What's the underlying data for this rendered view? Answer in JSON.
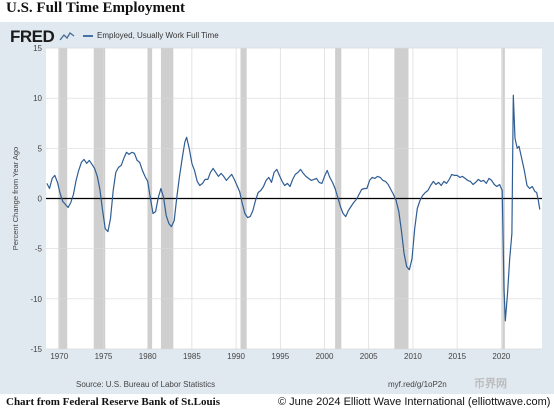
{
  "page": {
    "title": "U.S. Full Time Employment",
    "credit_left": "Chart from Federal Reserve Bank of St.Louis",
    "credit_right": "© June 2024 Elliott Wave International (elliottwave.com)"
  },
  "fred": {
    "logo_text": "FRED",
    "source": "Source: U.S. Bureau of Labor Statistics",
    "url": "myf.red/g/1oP2n",
    "watermark": "币界网"
  },
  "colors": {
    "line": "#2f5d93",
    "recession": "#cfcfcf",
    "plot_bg": "#ffffff",
    "frame_bg": "#e1e9f0",
    "grid": "#d9d9d9",
    "zero_line": "#000000"
  },
  "chart_data": {
    "type": "line",
    "title": "",
    "xlabel": "",
    "ylabel": "Percent Change from Year Ago",
    "xlim": [
      1968.5,
      2024.6
    ],
    "ylim": [
      -15,
      15
    ],
    "yticks": [
      15,
      10,
      5,
      0,
      -5,
      -10,
      -15
    ],
    "xticks": [
      1970,
      1975,
      1980,
      1985,
      1990,
      1995,
      2000,
      2005,
      2010,
      2015,
      2020
    ],
    "grid": true,
    "legend": "top-left",
    "series": [
      {
        "name": "Employed, Usually Work Full Time",
        "points": [
          [
            1968.6,
            1.5
          ],
          [
            1968.9,
            1.0
          ],
          [
            1969.2,
            2.0
          ],
          [
            1969.5,
            2.3
          ],
          [
            1969.8,
            1.6
          ],
          [
            1970.1,
            0.5
          ],
          [
            1970.4,
            -0.3
          ],
          [
            1970.7,
            -0.6
          ],
          [
            1971.0,
            -0.9
          ],
          [
            1971.3,
            -0.4
          ],
          [
            1971.6,
            0.4
          ],
          [
            1971.9,
            1.8
          ],
          [
            1972.2,
            2.8
          ],
          [
            1972.5,
            3.6
          ],
          [
            1972.8,
            3.9
          ],
          [
            1973.1,
            3.5
          ],
          [
            1973.4,
            3.8
          ],
          [
            1973.7,
            3.4
          ],
          [
            1974.0,
            3.0
          ],
          [
            1974.3,
            2.2
          ],
          [
            1974.6,
            0.9
          ],
          [
            1974.9,
            -1.2
          ],
          [
            1975.2,
            -3.0
          ],
          [
            1975.5,
            -3.3
          ],
          [
            1975.8,
            -2.0
          ],
          [
            1976.1,
            0.8
          ],
          [
            1976.4,
            2.6
          ],
          [
            1976.7,
            3.1
          ],
          [
            1977.0,
            3.3
          ],
          [
            1977.3,
            4.0
          ],
          [
            1977.6,
            4.6
          ],
          [
            1977.9,
            4.4
          ],
          [
            1978.2,
            4.6
          ],
          [
            1978.5,
            4.5
          ],
          [
            1978.8,
            3.8
          ],
          [
            1979.1,
            3.6
          ],
          [
            1979.4,
            2.8
          ],
          [
            1979.7,
            2.2
          ],
          [
            1980.0,
            1.7
          ],
          [
            1980.3,
            0.1
          ],
          [
            1980.6,
            -1.5
          ],
          [
            1980.9,
            -1.3
          ],
          [
            1981.2,
            0.1
          ],
          [
            1981.5,
            1.0
          ],
          [
            1981.8,
            0.1
          ],
          [
            1982.1,
            -1.7
          ],
          [
            1982.4,
            -2.5
          ],
          [
            1982.7,
            -2.8
          ],
          [
            1983.0,
            -2.2
          ],
          [
            1983.3,
            0.2
          ],
          [
            1983.6,
            2.2
          ],
          [
            1983.9,
            4.0
          ],
          [
            1984.2,
            5.6
          ],
          [
            1984.4,
            6.1
          ],
          [
            1984.7,
            5.0
          ],
          [
            1985.0,
            3.5
          ],
          [
            1985.3,
            2.8
          ],
          [
            1985.6,
            1.7
          ],
          [
            1985.9,
            1.3
          ],
          [
            1986.2,
            1.5
          ],
          [
            1986.5,
            1.9
          ],
          [
            1986.8,
            1.9
          ],
          [
            1987.1,
            2.6
          ],
          [
            1987.4,
            3.0
          ],
          [
            1987.7,
            2.6
          ],
          [
            1988.0,
            2.2
          ],
          [
            1988.3,
            2.5
          ],
          [
            1988.6,
            2.2
          ],
          [
            1988.9,
            1.8
          ],
          [
            1989.2,
            2.1
          ],
          [
            1989.5,
            2.4
          ],
          [
            1989.8,
            1.9
          ],
          [
            1990.1,
            1.3
          ],
          [
            1990.4,
            0.7
          ],
          [
            1990.7,
            -0.5
          ],
          [
            1991.0,
            -1.5
          ],
          [
            1991.3,
            -1.9
          ],
          [
            1991.6,
            -1.8
          ],
          [
            1991.9,
            -1.2
          ],
          [
            1992.2,
            -0.2
          ],
          [
            1992.5,
            0.6
          ],
          [
            1992.8,
            0.8
          ],
          [
            1993.1,
            1.2
          ],
          [
            1993.4,
            1.8
          ],
          [
            1993.7,
            2.1
          ],
          [
            1994.0,
            1.6
          ],
          [
            1994.3,
            2.6
          ],
          [
            1994.6,
            2.9
          ],
          [
            1994.9,
            2.3
          ],
          [
            1995.2,
            1.7
          ],
          [
            1995.5,
            1.3
          ],
          [
            1995.8,
            1.5
          ],
          [
            1996.1,
            1.2
          ],
          [
            1996.4,
            1.9
          ],
          [
            1996.7,
            2.4
          ],
          [
            1997.0,
            2.6
          ],
          [
            1997.3,
            2.9
          ],
          [
            1997.6,
            2.5
          ],
          [
            1997.9,
            2.2
          ],
          [
            1998.2,
            2.0
          ],
          [
            1998.5,
            1.8
          ],
          [
            1998.8,
            1.9
          ],
          [
            1999.1,
            2.0
          ],
          [
            1999.4,
            1.6
          ],
          [
            1999.7,
            1.5
          ],
          [
            2000.0,
            2.2
          ],
          [
            2000.3,
            2.8
          ],
          [
            2000.6,
            2.1
          ],
          [
            2000.9,
            1.6
          ],
          [
            2001.2,
            1.0
          ],
          [
            2001.5,
            0.1
          ],
          [
            2001.8,
            -0.8
          ],
          [
            2002.1,
            -1.5
          ],
          [
            2002.4,
            -1.8
          ],
          [
            2002.7,
            -1.2
          ],
          [
            2003.0,
            -0.8
          ],
          [
            2003.3,
            -0.4
          ],
          [
            2003.6,
            -0.1
          ],
          [
            2003.9,
            0.4
          ],
          [
            2004.2,
            0.9
          ],
          [
            2004.5,
            1.0
          ],
          [
            2004.8,
            1.0
          ],
          [
            2005.1,
            1.8
          ],
          [
            2005.4,
            2.1
          ],
          [
            2005.7,
            2.0
          ],
          [
            2006.0,
            2.2
          ],
          [
            2006.3,
            2.1
          ],
          [
            2006.6,
            1.8
          ],
          [
            2006.9,
            1.7
          ],
          [
            2007.2,
            1.4
          ],
          [
            2007.5,
            0.9
          ],
          [
            2007.8,
            0.4
          ],
          [
            2008.1,
            -0.2
          ],
          [
            2008.4,
            -1.3
          ],
          [
            2008.7,
            -3.2
          ],
          [
            2009.0,
            -5.5
          ],
          [
            2009.3,
            -6.8
          ],
          [
            2009.6,
            -7.1
          ],
          [
            2009.9,
            -6.0
          ],
          [
            2010.2,
            -3.0
          ],
          [
            2010.5,
            -1.0
          ],
          [
            2010.8,
            -0.2
          ],
          [
            2011.1,
            0.3
          ],
          [
            2011.4,
            0.6
          ],
          [
            2011.7,
            0.8
          ],
          [
            2012.0,
            1.3
          ],
          [
            2012.3,
            1.7
          ],
          [
            2012.6,
            1.4
          ],
          [
            2012.9,
            1.6
          ],
          [
            2013.2,
            1.3
          ],
          [
            2013.5,
            1.7
          ],
          [
            2013.8,
            1.5
          ],
          [
            2014.1,
            1.9
          ],
          [
            2014.4,
            2.4
          ],
          [
            2014.7,
            2.3
          ],
          [
            2015.0,
            2.3
          ],
          [
            2015.3,
            2.1
          ],
          [
            2015.6,
            2.2
          ],
          [
            2015.9,
            2.0
          ],
          [
            2016.2,
            1.8
          ],
          [
            2016.5,
            1.7
          ],
          [
            2016.8,
            1.4
          ],
          [
            2017.1,
            1.6
          ],
          [
            2017.4,
            1.9
          ],
          [
            2017.7,
            1.7
          ],
          [
            2018.0,
            1.8
          ],
          [
            2018.3,
            1.5
          ],
          [
            2018.6,
            2.0
          ],
          [
            2018.9,
            1.8
          ],
          [
            2019.2,
            1.4
          ],
          [
            2019.5,
            1.2
          ],
          [
            2019.8,
            1.4
          ],
          [
            2020.1,
            0.8
          ],
          [
            2020.3,
            -9.0
          ],
          [
            2020.45,
            -12.2
          ],
          [
            2020.7,
            -9.5
          ],
          [
            2020.95,
            -6.0
          ],
          [
            2021.2,
            -3.5
          ],
          [
            2021.35,
            10.3
          ],
          [
            2021.55,
            6.0
          ],
          [
            2021.8,
            5.0
          ],
          [
            2022.0,
            5.2
          ],
          [
            2022.3,
            4.0
          ],
          [
            2022.6,
            2.8
          ],
          [
            2022.9,
            1.3
          ],
          [
            2023.2,
            1.0
          ],
          [
            2023.5,
            1.2
          ],
          [
            2023.8,
            0.7
          ],
          [
            2024.0,
            0.6
          ],
          [
            2024.2,
            -0.3
          ],
          [
            2024.35,
            -1.1
          ]
        ]
      }
    ],
    "recessions": [
      [
        1969.9,
        1970.9
      ],
      [
        1973.9,
        1975.2
      ],
      [
        1980.0,
        1980.5
      ],
      [
        1981.5,
        1982.9
      ],
      [
        1990.5,
        1991.2
      ],
      [
        2001.2,
        2001.9
      ],
      [
        2007.9,
        2009.5
      ],
      [
        2020.1,
        2020.4
      ]
    ]
  }
}
